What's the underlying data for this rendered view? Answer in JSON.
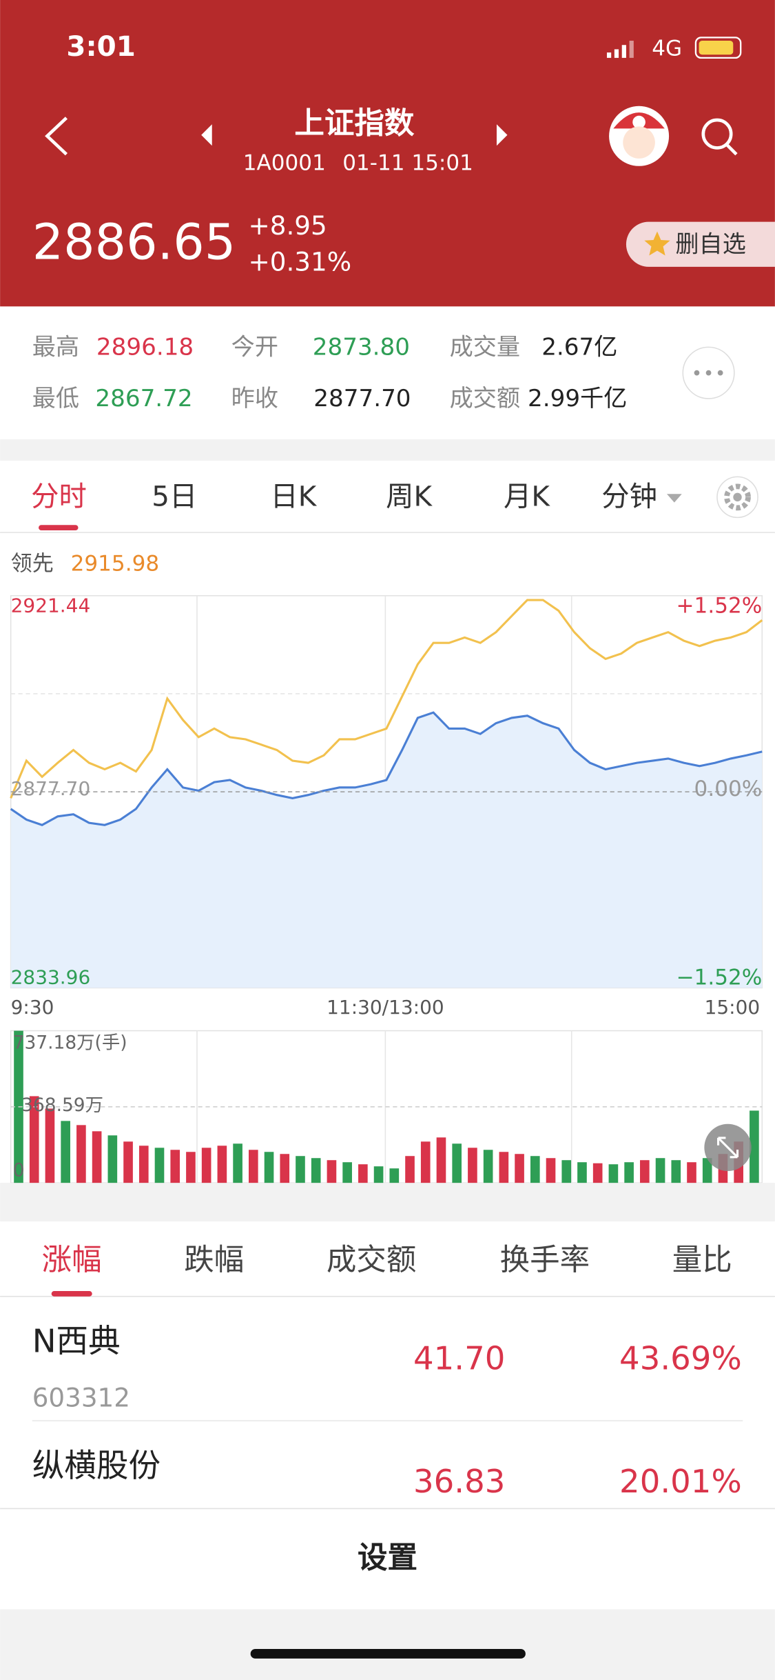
{
  "status": {
    "time": "3:01",
    "network": "4G"
  },
  "header": {
    "title": "上证指数",
    "code": "1A0001",
    "time": "01-11 15:01",
    "price": "2886.65",
    "change": "+8.95",
    "change_pct": "+0.31%",
    "button": "删自选"
  },
  "stats": [
    [
      "最高",
      "2896.18"
    ],
    [
      "今开",
      "2873.80"
    ],
    [
      "成交量",
      "2.67亿"
    ],
    [
      "最低",
      "2867.72"
    ],
    [
      "昨收",
      "2877.70"
    ],
    [
      "成交额",
      "2.99千亿"
    ]
  ],
  "tabs": [
    "分时",
    "5日",
    "日K",
    "周K",
    "月K",
    "分钟"
  ],
  "chart_data": [
    {
      "type": "line",
      "x_labels": [
        "9:30",
        "11:30/13:00",
        "15:00"
      ],
      "ylim": [
        2833.96,
        2921.44
      ],
      "yticks": [
        2921.44,
        {
          "value": 2877.7,
          "label": "2877.70"
        },
        2833.96
      ],
      "ytick_colors": [
        "#d9344a",
        "#999999",
        "#2e9e55"
      ],
      "y2lim": [
        -1.52,
        1.52
      ],
      "y2ticks": [
        {
          "value": 1.52,
          "label": "+1.52%"
        },
        {
          "value": 0,
          "label": "0.00%"
        },
        {
          "value": -1.52,
          "label": "−1.52%"
        }
      ],
      "series": [
        {
          "name": "领先",
          "color": "#f2c14e",
          "values": [
            2876.27,
            2884.63,
            2881.05,
            2884.16,
            2887.02,
            2884.16,
            2882.72,
            2884.16,
            2882.24,
            2887.02,
            2898.5,
            2893.72,
            2889.89,
            2891.8,
            2889.89,
            2889.41,
            2888.22,
            2887.02,
            2884.63,
            2884.16,
            2885.83,
            2889.41,
            2889.41,
            2890.61,
            2891.8,
            2898.97,
            2906.14,
            2910.92,
            2910.92,
            2912.12,
            2910.92,
            2913.31,
            2916.9,
            2920.48,
            2920.48,
            2918.09,
            2913.31,
            2909.73,
            2907.34,
            2908.53,
            2910.92,
            2912.12,
            2913.31,
            2911.4,
            2910.21,
            2911.4,
            2912.12,
            2913.31,
            2915.98
          ]
        },
        {
          "color": "#4a7fd4",
          "fill": "#e6f0fc",
          "values": [
            2873.88,
            2871.49,
            2870.29,
            2872.21,
            2872.68,
            2870.77,
            2870.29,
            2871.49,
            2873.88,
            2878.66,
            2882.72,
            2878.66,
            2877.94,
            2879.85,
            2880.33,
            2878.66,
            2877.94,
            2876.99,
            2876.27,
            2876.99,
            2877.94,
            2878.66,
            2878.66,
            2879.38,
            2880.33,
            2887.02,
            2894.19,
            2895.39,
            2891.8,
            2891.8,
            2890.61,
            2893.0,
            2894.19,
            2894.67,
            2893.0,
            2891.8,
            2887.02,
            2884.16,
            2882.72,
            2883.44,
            2884.16,
            2884.63,
            2885.11,
            2884.16,
            2883.44,
            2884.16,
            2885.11,
            2885.83,
            2886.65
          ]
        }
      ]
    },
    {
      "type": "bar",
      "ylim": [
        0,
        737.18
      ],
      "yticks": [
        {
          "value": 737.18,
          "label": "737.18万(手)"
        },
        {
          "value": 368.59,
          "label": "368.59万"
        },
        0
      ],
      "values": [
        737,
        420,
        360,
        300,
        280,
        250,
        230,
        200,
        180,
        170,
        160,
        150,
        170,
        180,
        190,
        160,
        150,
        140,
        130,
        120,
        110,
        100,
        90,
        80,
        70,
        130,
        200,
        220,
        190,
        170,
        160,
        150,
        140,
        130,
        120,
        110,
        100,
        95,
        90,
        100,
        110,
        120,
        110,
        100,
        120,
        140,
        200,
        350
      ],
      "colors": [
        "#2e9e55",
        "#d9344a",
        "#d9344a",
        "#2e9e55",
        "#d9344a",
        "#d9344a",
        "#2e9e55",
        "#d9344a",
        "#d9344a",
        "#2e9e55",
        "#d9344a",
        "#d9344a",
        "#d9344a",
        "#d9344a",
        "#2e9e55",
        "#d9344a",
        "#2e9e55",
        "#d9344a",
        "#2e9e55",
        "#2e9e55",
        "#d9344a",
        "#2e9e55",
        "#d9344a",
        "#2e9e55",
        "#2e9e55",
        "#d9344a",
        "#d9344a",
        "#d9344a",
        "#2e9e55",
        "#d9344a",
        "#2e9e55",
        "#d9344a",
        "#d9344a",
        "#2e9e55",
        "#d9344a",
        "#2e9e55",
        "#2e9e55",
        "#d9344a",
        "#2e9e55",
        "#2e9e55",
        "#d9344a",
        "#2e9e55",
        "#2e9e55",
        "#d9344a",
        "#2e9e55",
        "#d9344a",
        "#d9344a",
        "#2e9e55"
      ]
    }
  ],
  "rank_tabs": [
    "涨幅",
    "跌幅",
    "成交额",
    "换手率",
    "量比"
  ],
  "rows": [
    {
      "name": "N西典",
      "code": "603312",
      "price": "41.70",
      "pct": "43.69%"
    },
    {
      "name": "纵横股份",
      "price": "36.83",
      "pct": "20.01%"
    }
  ],
  "footer": "设置"
}
